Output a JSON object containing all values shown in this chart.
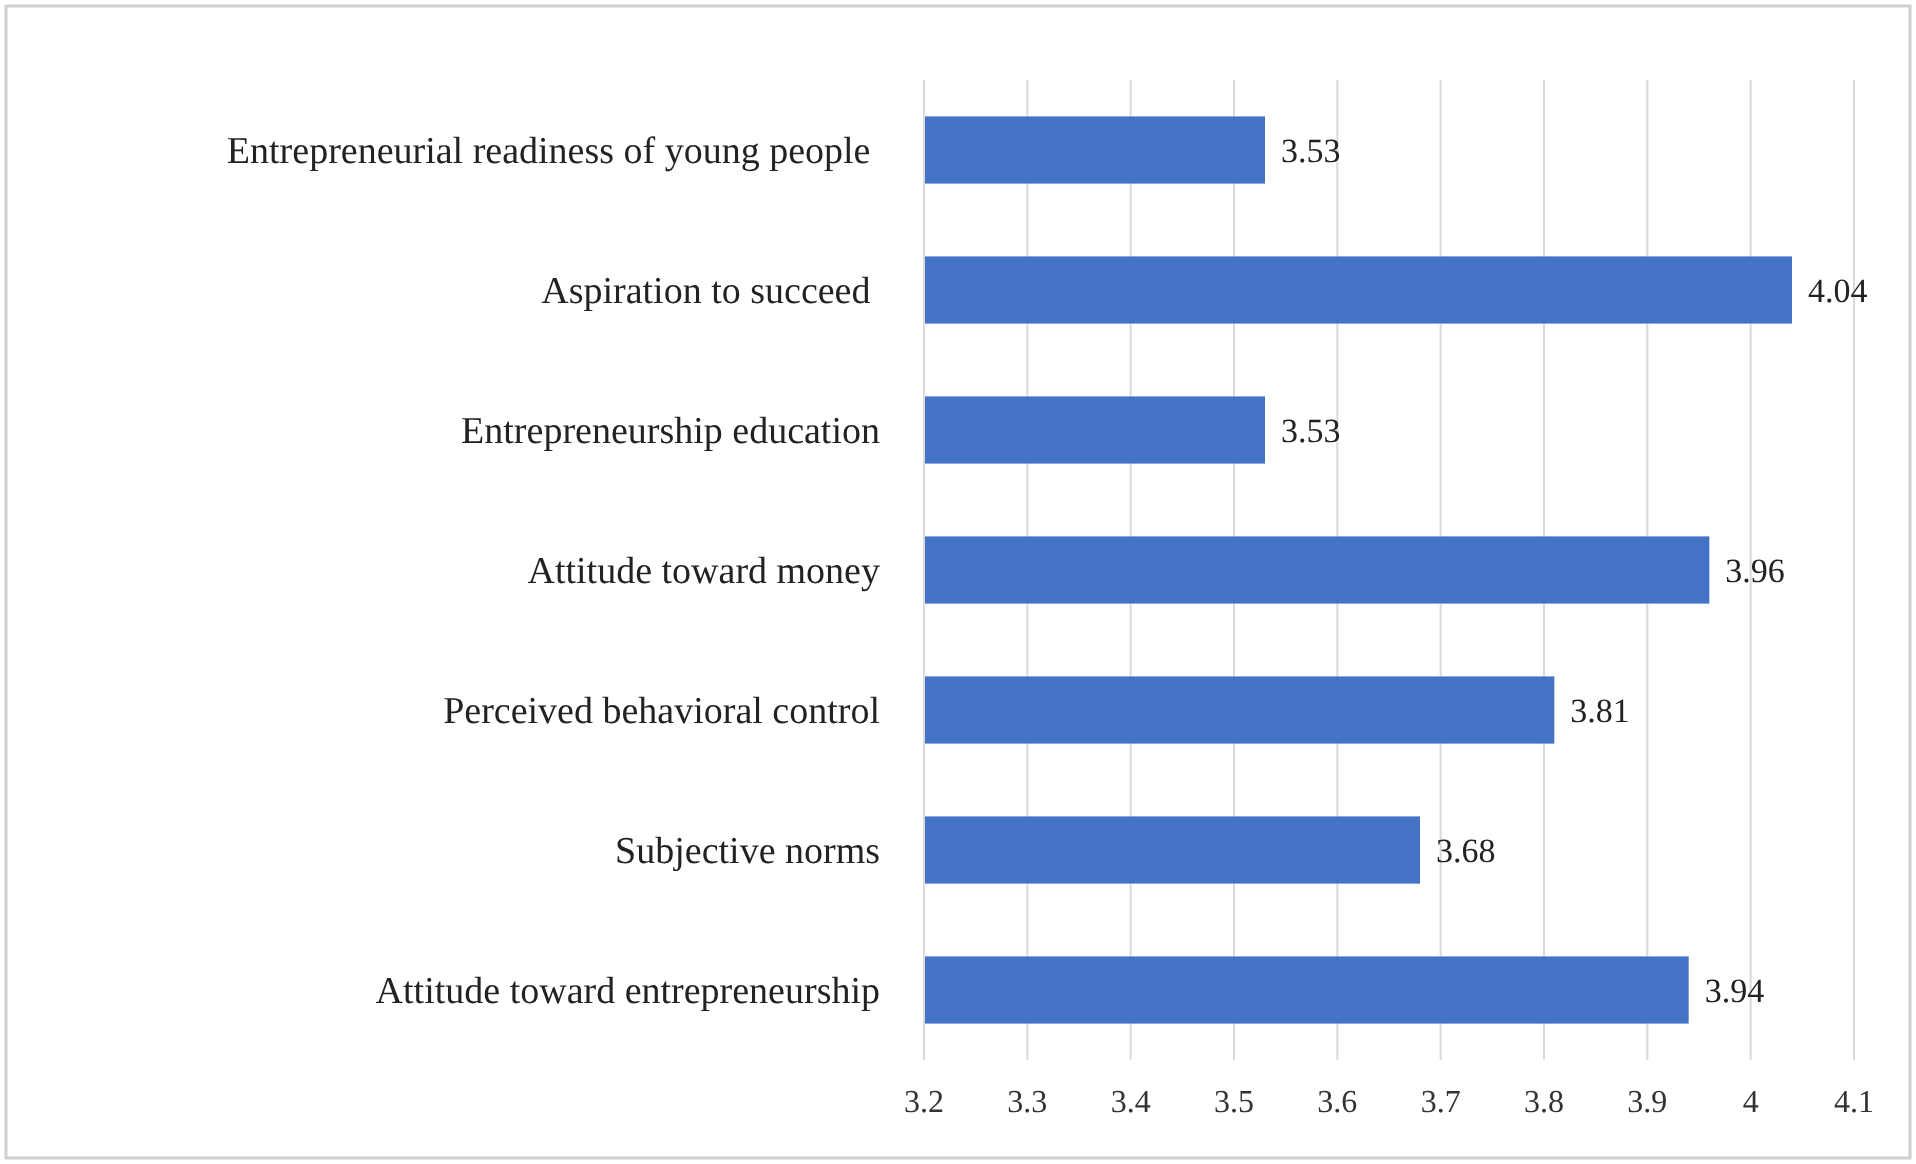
{
  "chart_data": {
    "type": "bar",
    "orientation": "horizontal",
    "categories": [
      "Entrepreneurial readiness of young people ",
      "Aspiration to succeed ",
      "Entrepreneurship education",
      "Attitude toward money",
      "Perceived behavioral control",
      "Subjective norms",
      "Attitude toward entrepreneurship"
    ],
    "values": [
      3.53,
      4.04,
      3.53,
      3.96,
      3.81,
      3.68,
      3.94
    ],
    "color": "#4472c4",
    "xlim": [
      3.2,
      4.1
    ],
    "xticks": [
      3.2,
      3.3,
      3.4,
      3.5,
      3.6,
      3.7,
      3.8,
      3.9,
      4,
      4.1
    ],
    "grid": "x",
    "data_labels": true
  }
}
